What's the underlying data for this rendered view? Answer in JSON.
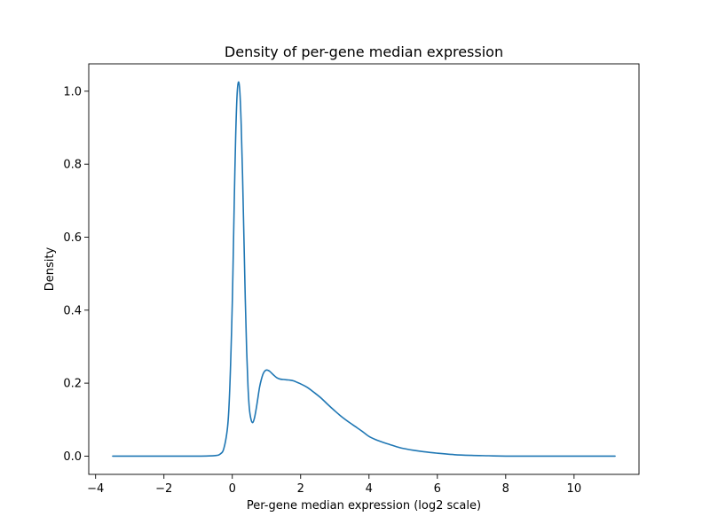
{
  "chart_data": {
    "type": "line",
    "title": "Density of per-gene median expression",
    "xlabel": "Per-gene median expression (log2 scale)",
    "ylabel": "Density",
    "xlim": [
      -4.2,
      11.9
    ],
    "ylim": [
      -0.05,
      1.075
    ],
    "xticks": [
      -4,
      -2,
      0,
      2,
      4,
      6,
      8,
      10
    ],
    "xtick_labels": [
      "−4",
      "−2",
      "0",
      "2",
      "4",
      "6",
      "8",
      "10"
    ],
    "yticks": [
      0.0,
      0.2,
      0.4,
      0.6,
      0.8,
      1.0
    ],
    "ytick_labels": [
      "0.0",
      "0.2",
      "0.4",
      "0.6",
      "0.8",
      "1.0"
    ],
    "grid": false,
    "legend": "none",
    "series": [
      {
        "color": "#1f77b4",
        "x": [
          -3.5,
          -3.0,
          -2.0,
          -1.0,
          -0.5,
          -0.35,
          -0.25,
          -0.15,
          -0.1,
          -0.05,
          0.0,
          0.03,
          0.06,
          0.1,
          0.14,
          0.18,
          0.22,
          0.26,
          0.3,
          0.34,
          0.38,
          0.42,
          0.46,
          0.5,
          0.55,
          0.6,
          0.65,
          0.7,
          0.75,
          0.8,
          0.85,
          0.9,
          0.95,
          1.0,
          1.05,
          1.1,
          1.2,
          1.3,
          1.4,
          1.5,
          1.6,
          1.7,
          1.8,
          1.9,
          2.0,
          2.2,
          2.4,
          2.6,
          2.8,
          3.0,
          3.2,
          3.4,
          3.6,
          3.8,
          4.0,
          4.2,
          4.4,
          4.6,
          4.8,
          5.0,
          5.3,
          5.6,
          6.0,
          6.5,
          7.0,
          7.5,
          8.0,
          9.0,
          10.0,
          11.2
        ],
        "y": [
          0.0,
          0.0,
          0.0,
          0.0,
          0.0015,
          0.006,
          0.02,
          0.07,
          0.13,
          0.25,
          0.42,
          0.56,
          0.71,
          0.88,
          0.99,
          1.025,
          1.0,
          0.91,
          0.77,
          0.6,
          0.43,
          0.29,
          0.19,
          0.13,
          0.1,
          0.092,
          0.105,
          0.13,
          0.16,
          0.19,
          0.21,
          0.225,
          0.233,
          0.236,
          0.235,
          0.232,
          0.223,
          0.215,
          0.211,
          0.21,
          0.209,
          0.208,
          0.206,
          0.202,
          0.198,
          0.188,
          0.174,
          0.159,
          0.141,
          0.124,
          0.108,
          0.094,
          0.081,
          0.068,
          0.054,
          0.045,
          0.038,
          0.032,
          0.026,
          0.021,
          0.016,
          0.012,
          0.008,
          0.004,
          0.002,
          0.001,
          0.0,
          0.0,
          0.0,
          0.0
        ]
      }
    ]
  }
}
